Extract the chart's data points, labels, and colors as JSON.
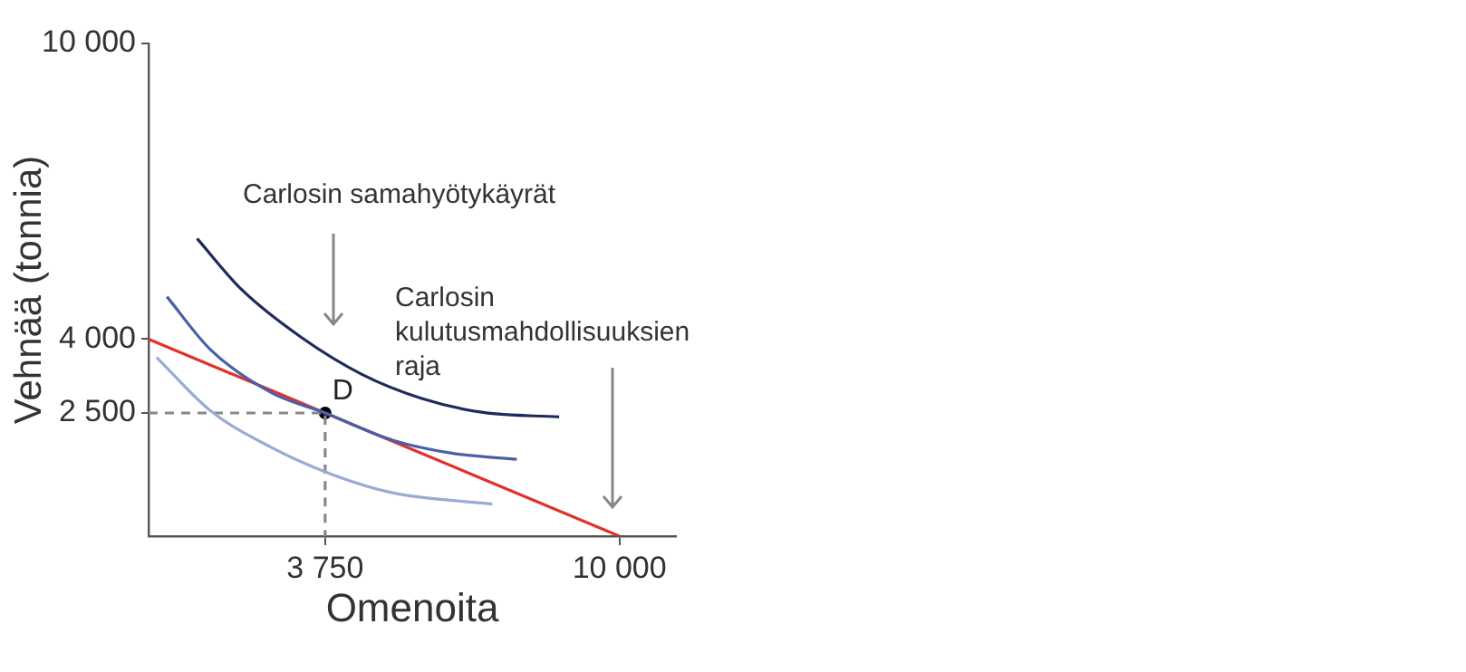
{
  "chart_data": {
    "type": "line",
    "xlabel": "Omenoita",
    "ylabel": "Vehnää (tonnia)",
    "xlim": [
      0,
      11200
    ],
    "xticks": [
      {
        "value": 3750,
        "label": "3 750"
      },
      {
        "value": 10000,
        "label": "10 000"
      }
    ],
    "ylim": [
      0,
      10000
    ],
    "yticks": [
      {
        "value": 2500,
        "label": "2 500"
      },
      {
        "value": 4000,
        "label": "4 000"
      },
      {
        "value": 10000,
        "label": "10 000"
      }
    ],
    "grid": false,
    "legend": false,
    "annotations": [
      "Carlosin samahyötykäyrät",
      "Carlosin kulutusmahdollisuuksien raja"
    ],
    "series": [
      {
        "color": "#9aaad6",
        "x": [
          170,
          1320,
          2610,
          3900,
          5180,
          7300
        ],
        "values": [
          3630,
          2540,
          1800,
          1250,
          880,
          650
        ]
      },
      {
        "color": "#4a5fa8",
        "x": [
          390,
          1320,
          2610,
          3750,
          5180,
          6470,
          7820
        ],
        "values": [
          4860,
          3780,
          2910,
          2500,
          1950,
          1680,
          1560
        ]
      },
      {
        "color": "#1f2a5c",
        "x": [
          1030,
          1970,
          3250,
          4540,
          5820,
          7110,
          8720
        ],
        "values": [
          6040,
          5010,
          4030,
          3280,
          2790,
          2510,
          2420
        ]
      },
      {
        "color": "#e0312a",
        "x": [
          0,
          10000
        ],
        "values": [
          4000,
          0
        ]
      },
      {
        "color": "#888888",
        "line_style": "dashed",
        "x": [
          0,
          3750,
          3750
        ],
        "values": [
          2500,
          2500,
          0
        ]
      },
      {
        "type": "scatter",
        "name": "D",
        "marker": "circle",
        "color": "#000000",
        "x": [
          3750
        ],
        "values": [
          2500
        ]
      }
    ]
  }
}
